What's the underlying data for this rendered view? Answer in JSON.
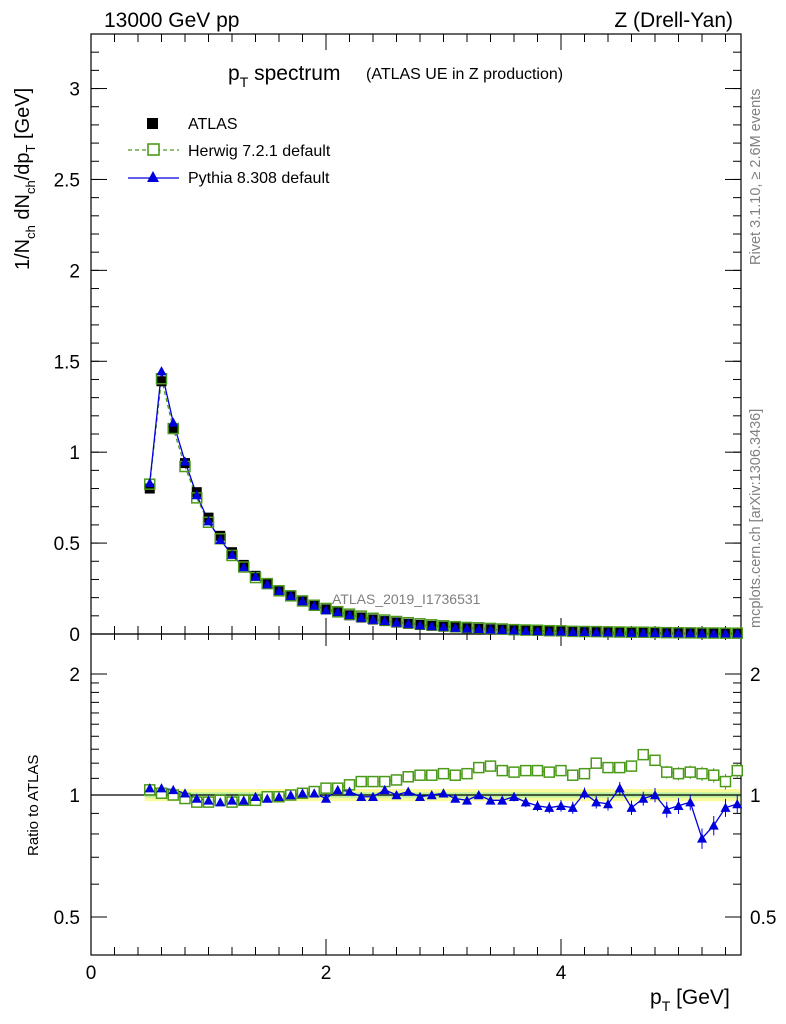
{
  "header": {
    "left": "13000 GeV pp",
    "right": "Z (Drell-Yan)"
  },
  "title": {
    "main_prefix": "p",
    "main_sub": "T",
    "main_suffix": " spectrum",
    "note": "(ATLAS UE in Z production)"
  },
  "side_labels": {
    "rivet": "Rivet 3.1.10, ≥ 2.6M events",
    "mcplots": "mcplots.cern.ch [arXiv:1306.3436]"
  },
  "watermark": "ATLAS_2019_I1736531",
  "legend": [
    {
      "label": "ATLAS",
      "marker": "filled-square",
      "color": "#000000"
    },
    {
      "label": "Herwig 7.2.1 default",
      "marker": "open-square",
      "color": "#4c9a1a",
      "dash": true
    },
    {
      "label": "Pythia 8.308 default",
      "marker": "filled-triangle",
      "color": "#0000dd",
      "dash": false
    }
  ],
  "axes": {
    "ylabel_main": "1/N_ch dN_ch/dp_T [GeV]",
    "ylabel_ratio": "Ratio to ATLAS",
    "xlabel": "p_T [GeV]",
    "x_ticks": [
      "0",
      "2",
      "4"
    ],
    "y_ticks_main": [
      "0",
      "0.5",
      "1",
      "1.5",
      "2",
      "2.5",
      "3"
    ],
    "y_ticks_ratio": [
      "0.5",
      "1",
      "2"
    ]
  },
  "chart_data": {
    "type": "line",
    "xlim": [
      0,
      5.5
    ],
    "ylim": [
      0,
      3.3
    ],
    "ratio_ylim": [
      0.35,
      2.3
    ],
    "x": [
      0.5,
      0.6,
      0.7,
      0.8,
      0.9,
      1.0,
      1.1,
      1.2,
      1.3,
      1.4,
      1.5,
      1.6,
      1.7,
      1.8,
      1.9,
      2.0,
      2.1,
      2.2,
      2.3,
      2.4,
      2.5,
      2.6,
      2.7,
      2.8,
      2.9,
      3.0,
      3.1,
      3.2,
      3.3,
      3.4,
      3.5,
      3.6,
      3.7,
      3.8,
      3.9,
      4.0,
      4.1,
      4.2,
      4.3,
      4.4,
      4.5,
      4.6,
      4.7,
      4.8,
      4.9,
      5.0,
      5.1,
      5.2,
      5.3,
      5.4,
      5.5
    ],
    "series": [
      {
        "name": "ATLAS",
        "values": [
          0.8,
          1.39,
          1.13,
          0.94,
          0.78,
          0.64,
          0.54,
          0.45,
          0.38,
          0.32,
          0.28,
          0.24,
          0.21,
          0.18,
          0.155,
          0.135,
          0.118,
          0.103,
          0.091,
          0.08,
          0.071,
          0.063,
          0.056,
          0.05,
          0.045,
          0.04,
          0.036,
          0.032,
          0.029,
          0.026,
          0.024,
          0.021,
          0.019,
          0.018,
          0.016,
          0.015,
          0.013,
          0.012,
          0.011,
          0.01,
          0.0092,
          0.0085,
          0.0078,
          0.0071,
          0.0065,
          0.006,
          0.0055,
          0.0051,
          0.0047,
          0.0043,
          0.004
        ]
      },
      {
        "name": "Herwig 7.2.1 default",
        "ratio": [
          1.03,
          1.01,
          1.0,
          0.98,
          0.96,
          0.96,
          0.97,
          0.96,
          0.97,
          0.97,
          0.99,
          0.99,
          1.0,
          1.01,
          1.02,
          1.04,
          1.04,
          1.06,
          1.08,
          1.08,
          1.08,
          1.09,
          1.11,
          1.12,
          1.12,
          1.13,
          1.12,
          1.13,
          1.17,
          1.18,
          1.15,
          1.14,
          1.15,
          1.15,
          1.14,
          1.15,
          1.12,
          1.13,
          1.2,
          1.17,
          1.17,
          1.18,
          1.26,
          1.22,
          1.14,
          1.13,
          1.14,
          1.13,
          1.12,
          1.08,
          1.15
        ]
      },
      {
        "name": "Pythia 8.308 default",
        "ratio": [
          1.04,
          1.04,
          1.03,
          1.01,
          0.98,
          0.97,
          0.96,
          0.97,
          0.97,
          0.99,
          0.98,
          0.99,
          1.0,
          1.01,
          1.01,
          0.98,
          1.03,
          1.02,
          0.99,
          0.99,
          1.03,
          1.0,
          1.02,
          0.99,
          1.0,
          1.01,
          0.98,
          0.97,
          1.0,
          0.97,
          0.97,
          0.99,
          0.96,
          0.94,
          0.93,
          0.94,
          0.93,
          1.01,
          0.96,
          0.95,
          1.04,
          0.93,
          0.98,
          1.0,
          0.92,
          0.94,
          0.96,
          0.78,
          0.84,
          0.93,
          0.95
        ]
      }
    ]
  }
}
